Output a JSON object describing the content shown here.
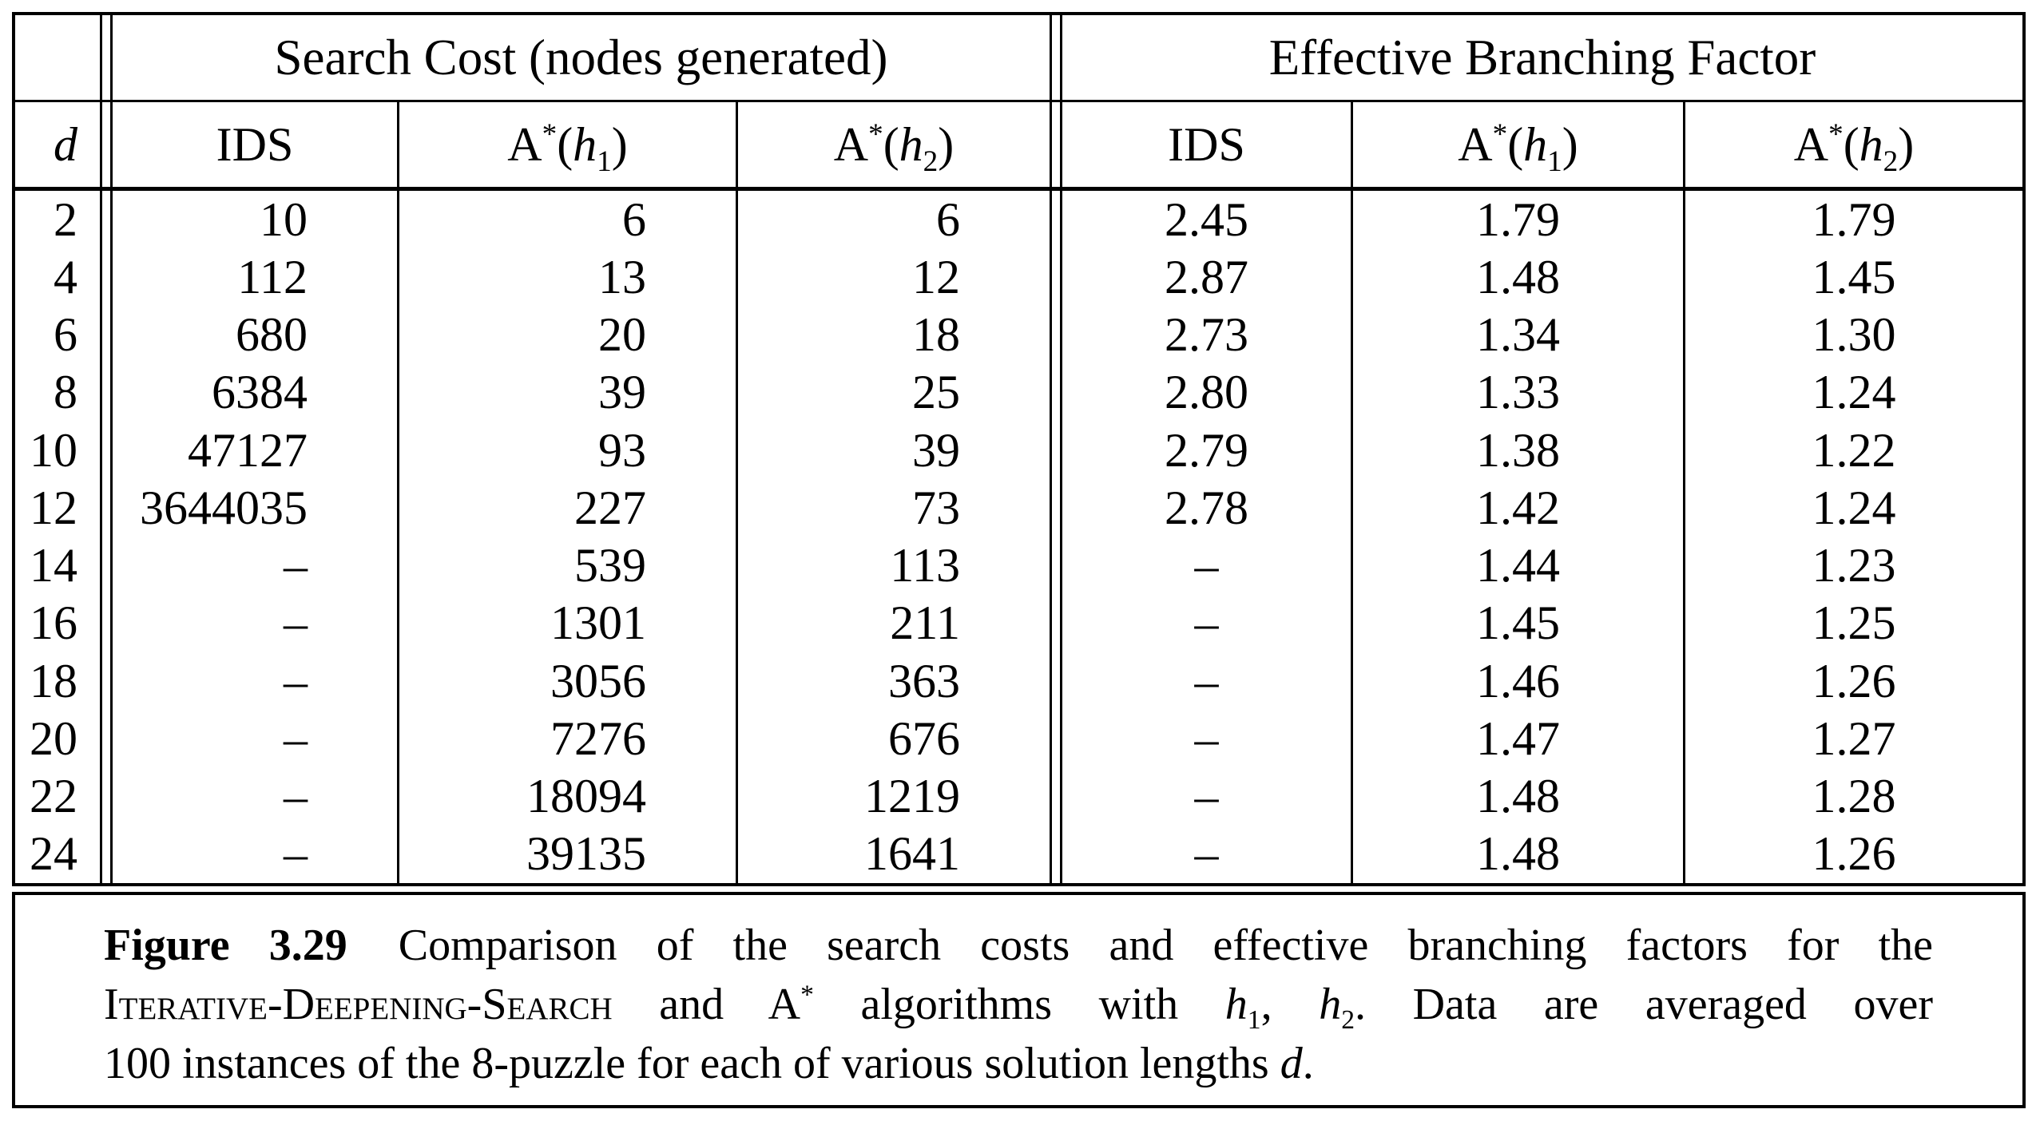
{
  "table": {
    "group_headers": {
      "search_cost": "Search Cost (nodes generated)",
      "ebf": "Effective Branching Factor"
    },
    "col_d": "d",
    "ids_label": "IDS",
    "astar": {
      "A": "A",
      "star": "*",
      "open": "(",
      "h": "h",
      "one": "1",
      "two": "2",
      "close": ")"
    },
    "rows": [
      {
        "d": "2",
        "sc_ids": "10",
        "sc_h1": "6",
        "sc_h2": "6",
        "ebf_ids": "2.45",
        "ebf_h1": "1.79",
        "ebf_h2": "1.79"
      },
      {
        "d": "4",
        "sc_ids": "112",
        "sc_h1": "13",
        "sc_h2": "12",
        "ebf_ids": "2.87",
        "ebf_h1": "1.48",
        "ebf_h2": "1.45"
      },
      {
        "d": "6",
        "sc_ids": "680",
        "sc_h1": "20",
        "sc_h2": "18",
        "ebf_ids": "2.73",
        "ebf_h1": "1.34",
        "ebf_h2": "1.30"
      },
      {
        "d": "8",
        "sc_ids": "6384",
        "sc_h1": "39",
        "sc_h2": "25",
        "ebf_ids": "2.80",
        "ebf_h1": "1.33",
        "ebf_h2": "1.24"
      },
      {
        "d": "10",
        "sc_ids": "47127",
        "sc_h1": "93",
        "sc_h2": "39",
        "ebf_ids": "2.79",
        "ebf_h1": "1.38",
        "ebf_h2": "1.22"
      },
      {
        "d": "12",
        "sc_ids": "3644035",
        "sc_h1": "227",
        "sc_h2": "73",
        "ebf_ids": "2.78",
        "ebf_h1": "1.42",
        "ebf_h2": "1.24"
      },
      {
        "d": "14",
        "sc_ids": "–",
        "sc_h1": "539",
        "sc_h2": "113",
        "ebf_ids": "–",
        "ebf_h1": "1.44",
        "ebf_h2": "1.23"
      },
      {
        "d": "16",
        "sc_ids": "–",
        "sc_h1": "1301",
        "sc_h2": "211",
        "ebf_ids": "–",
        "ebf_h1": "1.45",
        "ebf_h2": "1.25"
      },
      {
        "d": "18",
        "sc_ids": "–",
        "sc_h1": "3056",
        "sc_h2": "363",
        "ebf_ids": "–",
        "ebf_h1": "1.46",
        "ebf_h2": "1.26"
      },
      {
        "d": "20",
        "sc_ids": "–",
        "sc_h1": "7276",
        "sc_h2": "676",
        "ebf_ids": "–",
        "ebf_h1": "1.47",
        "ebf_h2": "1.27"
      },
      {
        "d": "22",
        "sc_ids": "–",
        "sc_h1": "18094",
        "sc_h2": "1219",
        "ebf_ids": "–",
        "ebf_h1": "1.48",
        "ebf_h2": "1.28"
      },
      {
        "d": "24",
        "sc_ids": "–",
        "sc_h1": "39135",
        "sc_h2": "1641",
        "ebf_ids": "–",
        "ebf_h1": "1.48",
        "ebf_h2": "1.26"
      }
    ]
  },
  "caption": {
    "figure_label": "Figure 3.29",
    "line1": "Comparison of the search costs and effective branching factors for the",
    "algo": "Iterative-Deepening-Search",
    "and_a": "and A",
    "star": "*",
    "algorithms_with": "algorithms with",
    "h": "h",
    "one": "1",
    "two": "2",
    "comma": ",",
    "line2_end": ". Data are averaged over",
    "line3": "100 instances of the 8-puzzle for each of various solution lengths",
    "d_var": "d",
    "period": "."
  },
  "chart_data": {
    "type": "table",
    "title": "Figure 3.29 — Comparison of search costs and effective branching factors for IDS and A* with h1, h2 (8-puzzle, averaged over 100 instances)",
    "column_groups": [
      "Search Cost (nodes generated)",
      "Effective Branching Factor"
    ],
    "columns": [
      "d",
      "IDS",
      "A*(h1)",
      "A*(h2)",
      "IDS",
      "A*(h1)",
      "A*(h2)"
    ],
    "rows": [
      [
        2,
        10,
        6,
        6,
        2.45,
        1.79,
        1.79
      ],
      [
        4,
        112,
        13,
        12,
        2.87,
        1.48,
        1.45
      ],
      [
        6,
        680,
        20,
        18,
        2.73,
        1.34,
        1.3
      ],
      [
        8,
        6384,
        39,
        25,
        2.8,
        1.33,
        1.24
      ],
      [
        10,
        47127,
        93,
        39,
        2.79,
        1.38,
        1.22
      ],
      [
        12,
        3644035,
        227,
        73,
        2.78,
        1.42,
        1.24
      ],
      [
        14,
        null,
        539,
        113,
        null,
        1.44,
        1.23
      ],
      [
        16,
        null,
        1301,
        211,
        null,
        1.45,
        1.25
      ],
      [
        18,
        null,
        3056,
        363,
        null,
        1.46,
        1.26
      ],
      [
        20,
        null,
        7276,
        676,
        null,
        1.47,
        1.27
      ],
      [
        22,
        null,
        18094,
        1219,
        null,
        1.48,
        1.28
      ],
      [
        24,
        null,
        39135,
        1641,
        null,
        1.48,
        1.26
      ]
    ]
  }
}
